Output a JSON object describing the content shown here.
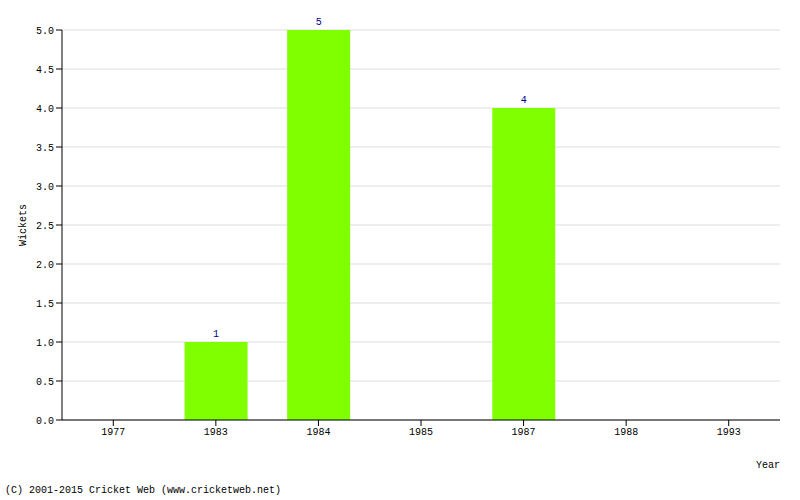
{
  "chart_data": {
    "type": "bar",
    "x_label": "Year",
    "y_label": "Wickets",
    "annotation": "(C) 2001-2015 Cricket Web (www.cricketweb.net)",
    "categories": [
      "1977",
      "1983",
      "1984",
      "1985",
      "1987",
      "1988",
      "1993"
    ],
    "values": [
      0,
      1,
      5,
      0,
      4,
      0,
      0
    ],
    "color": "#80ff00",
    "ylim": [
      0,
      5
    ],
    "yticks": [
      {
        "value": 0,
        "label": "0.0"
      },
      {
        "value": 0.5,
        "label": "0.5"
      },
      {
        "value": 1,
        "label": "1.0"
      },
      {
        "value": 1.5,
        "label": "1.5"
      },
      {
        "value": 2,
        "label": "2.0"
      },
      {
        "value": 2.5,
        "label": "2.5"
      },
      {
        "value": 3,
        "label": "3.0"
      },
      {
        "value": 3.5,
        "label": "3.5"
      },
      {
        "value": 4,
        "label": "4.0"
      },
      {
        "value": 4.5,
        "label": "4.5"
      },
      {
        "value": 5,
        "label": "5.0"
      }
    ],
    "grid": true,
    "data_labels": true
  }
}
